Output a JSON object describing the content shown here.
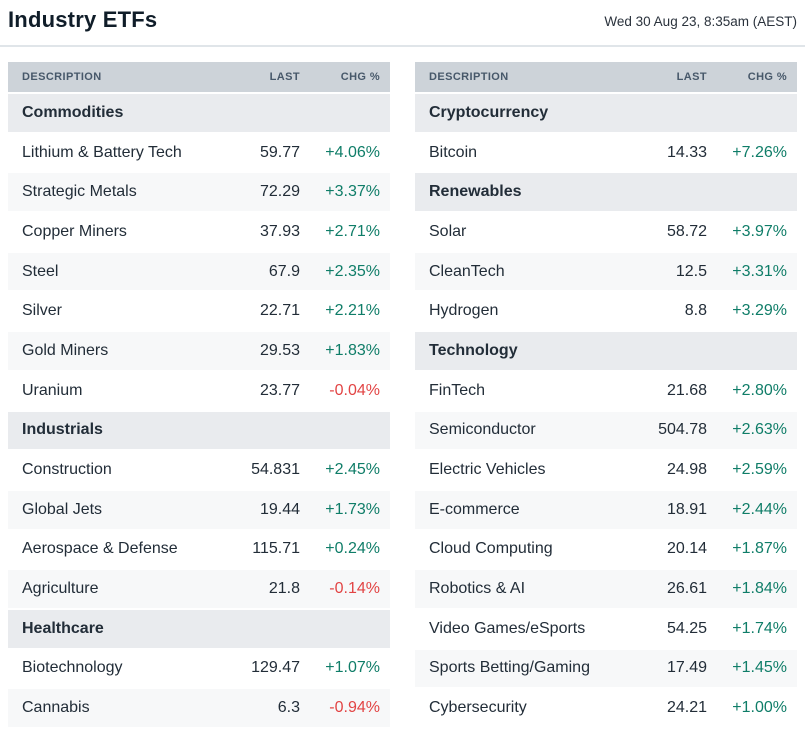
{
  "header": {
    "title": "Industry ETFs",
    "timestamp": "Wed 30 Aug 23, 8:35am (AEST)"
  },
  "columns": [
    "DESCRIPTION",
    "LAST",
    "CHG %"
  ],
  "colors": {
    "positive": "#0f7d68",
    "negative": "#e24444",
    "header_bg": "#cdd3d9",
    "section_bg": "#e9ebee",
    "stripe_bg": "#f7f8f9"
  },
  "tables": {
    "left": {
      "sections": [
        {
          "name": "Commodities",
          "rows": [
            {
              "description": "Lithium & Battery Tech",
              "last": "59.77",
              "chg": "+4.06%",
              "direction": "up"
            },
            {
              "description": "Strategic Metals",
              "last": "72.29",
              "chg": "+3.37%",
              "direction": "up"
            },
            {
              "description": "Copper Miners",
              "last": "37.93",
              "chg": "+2.71%",
              "direction": "up"
            },
            {
              "description": "Steel",
              "last": "67.9",
              "chg": "+2.35%",
              "direction": "up"
            },
            {
              "description": "Silver",
              "last": "22.71",
              "chg": "+2.21%",
              "direction": "up"
            },
            {
              "description": "Gold Miners",
              "last": "29.53",
              "chg": "+1.83%",
              "direction": "up"
            },
            {
              "description": "Uranium",
              "last": "23.77",
              "chg": "-0.04%",
              "direction": "down"
            }
          ]
        },
        {
          "name": "Industrials",
          "rows": [
            {
              "description": "Construction",
              "last": "54.831",
              "chg": "+2.45%",
              "direction": "up"
            },
            {
              "description": "Global Jets",
              "last": "19.44",
              "chg": "+1.73%",
              "direction": "up"
            },
            {
              "description": "Aerospace & Defense",
              "last": "115.71",
              "chg": "+0.24%",
              "direction": "up"
            },
            {
              "description": "Agriculture",
              "last": "21.8",
              "chg": "-0.14%",
              "direction": "down"
            }
          ]
        },
        {
          "name": "Healthcare",
          "rows": [
            {
              "description": "Biotechnology",
              "last": "129.47",
              "chg": "+1.07%",
              "direction": "up"
            },
            {
              "description": "Cannabis",
              "last": "6.3",
              "chg": "-0.94%",
              "direction": "down"
            }
          ]
        }
      ]
    },
    "right": {
      "sections": [
        {
          "name": "Cryptocurrency",
          "rows": [
            {
              "description": "Bitcoin",
              "last": "14.33",
              "chg": "+7.26%",
              "direction": "up"
            }
          ]
        },
        {
          "name": "Renewables",
          "rows": [
            {
              "description": "Solar",
              "last": "58.72",
              "chg": "+3.97%",
              "direction": "up"
            },
            {
              "description": "CleanTech",
              "last": "12.5",
              "chg": "+3.31%",
              "direction": "up"
            },
            {
              "description": "Hydrogen",
              "last": "8.8",
              "chg": "+3.29%",
              "direction": "up"
            }
          ]
        },
        {
          "name": "Technology",
          "rows": [
            {
              "description": "FinTech",
              "last": "21.68",
              "chg": "+2.80%",
              "direction": "up"
            },
            {
              "description": "Semiconductor",
              "last": "504.78",
              "chg": "+2.63%",
              "direction": "up"
            },
            {
              "description": "Electric Vehicles",
              "last": "24.98",
              "chg": "+2.59%",
              "direction": "up"
            },
            {
              "description": "E-commerce",
              "last": "18.91",
              "chg": "+2.44%",
              "direction": "up"
            },
            {
              "description": "Cloud Computing",
              "last": "20.14",
              "chg": "+1.87%",
              "direction": "up"
            },
            {
              "description": "Robotics & AI",
              "last": "26.61",
              "chg": "+1.84%",
              "direction": "up"
            },
            {
              "description": "Video Games/eSports",
              "last": "54.25",
              "chg": "+1.74%",
              "direction": "up"
            },
            {
              "description": "Sports Betting/Gaming",
              "last": "17.49",
              "chg": "+1.45%",
              "direction": "up"
            },
            {
              "description": "Cybersecurity",
              "last": "24.21",
              "chg": "+1.00%",
              "direction": "up"
            }
          ]
        }
      ]
    }
  }
}
